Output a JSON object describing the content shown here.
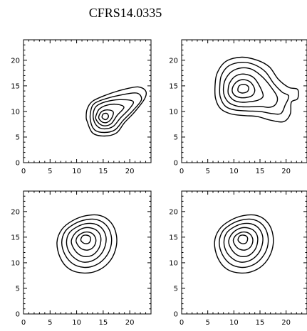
{
  "title": "CFRS14.0335",
  "chart_data": [
    {
      "type": "contour",
      "xlim": [
        0,
        24
      ],
      "ylim": [
        0,
        24
      ],
      "xticks": [
        0,
        5,
        10,
        15,
        20
      ],
      "yticks": [
        0,
        5,
        10,
        15,
        20
      ],
      "contours": [
        [
          [
            12.0,
            8.0
          ],
          [
            13.0,
            5.8
          ],
          [
            15.2,
            5.2
          ],
          [
            17.5,
            5.8
          ],
          [
            19.0,
            7.8
          ],
          [
            21.0,
            10.0
          ],
          [
            22.8,
            12.5
          ],
          [
            23.0,
            14.0
          ],
          [
            21.5,
            14.8
          ],
          [
            18.5,
            14.2
          ],
          [
            15.5,
            13.2
          ],
          [
            13.0,
            12.0
          ],
          [
            12.0,
            10.5
          ],
          [
            11.8,
            9.0
          ]
        ],
        [
          [
            12.6,
            8.2
          ],
          [
            13.4,
            6.4
          ],
          [
            15.2,
            5.9
          ],
          [
            17.2,
            6.4
          ],
          [
            18.8,
            8.3
          ],
          [
            20.7,
            10.3
          ],
          [
            22.2,
            12.3
          ],
          [
            21.3,
            13.6
          ],
          [
            18.2,
            13.2
          ],
          [
            15.5,
            12.5
          ],
          [
            13.4,
            11.6
          ],
          [
            12.7,
            10.3
          ]
        ],
        [
          [
            13.2,
            8.4
          ],
          [
            14.0,
            7.0
          ],
          [
            15.3,
            6.6
          ],
          [
            16.9,
            7.1
          ],
          [
            18.3,
            8.8
          ],
          [
            20.0,
            10.6
          ],
          [
            20.6,
            12.0
          ],
          [
            18.0,
            12.3
          ],
          [
            15.5,
            11.9
          ],
          [
            13.8,
            11.1
          ],
          [
            13.2,
            10.0
          ]
        ],
        [
          [
            13.6,
            8.6
          ],
          [
            14.4,
            7.5
          ],
          [
            15.5,
            7.2
          ],
          [
            16.6,
            7.7
          ],
          [
            17.6,
            9.2
          ],
          [
            18.9,
            10.8
          ],
          [
            17.5,
            11.4
          ],
          [
            15.6,
            11.2
          ],
          [
            14.3,
            10.5
          ],
          [
            13.8,
            9.6
          ]
        ],
        [
          [
            14.2,
            8.6
          ],
          [
            14.9,
            7.9
          ],
          [
            15.8,
            7.9
          ],
          [
            16.6,
            8.7
          ],
          [
            16.9,
            9.9
          ],
          [
            16.0,
            10.3
          ],
          [
            14.9,
            10.1
          ],
          [
            14.3,
            9.4
          ]
        ],
        [
          [
            14.8,
            8.8
          ],
          [
            15.5,
            8.4
          ],
          [
            16.0,
            9.0
          ],
          [
            15.7,
            9.6
          ],
          [
            15.0,
            9.5
          ]
        ]
      ]
    },
    {
      "type": "contour",
      "xlim": [
        0,
        24
      ],
      "ylim": [
        0,
        24
      ],
      "xticks": [
        0,
        5,
        10,
        15,
        20
      ],
      "yticks": [
        0,
        5,
        10,
        15,
        20
      ],
      "contours": [
        [
          [
            6.5,
            12.5
          ],
          [
            7.5,
            10.5
          ],
          [
            9.5,
            9.5
          ],
          [
            12.0,
            9.2
          ],
          [
            14.5,
            9.0
          ],
          [
            17.0,
            8.3
          ],
          [
            19.5,
            8.0
          ],
          [
            20.8,
            9.5
          ],
          [
            21.0,
            11.8
          ],
          [
            22.2,
            12.5
          ],
          [
            22.2,
            14.3
          ],
          [
            20.5,
            14.7
          ],
          [
            18.5,
            16.3
          ],
          [
            16.8,
            18.7
          ],
          [
            14.5,
            20.0
          ],
          [
            11.5,
            20.6
          ],
          [
            8.5,
            19.8
          ],
          [
            6.8,
            17.5
          ],
          [
            6.4,
            15.0
          ]
        ],
        [
          [
            7.4,
            12.8
          ],
          [
            8.4,
            11.0
          ],
          [
            10.2,
            10.3
          ],
          [
            12.5,
            10.1
          ],
          [
            15.0,
            10.0
          ],
          [
            17.2,
            9.6
          ],
          [
            19.0,
            9.6
          ],
          [
            19.8,
            11.2
          ],
          [
            20.5,
            13.0
          ],
          [
            19.2,
            13.8
          ],
          [
            17.6,
            15.5
          ],
          [
            16.0,
            17.8
          ],
          [
            13.8,
            19.2
          ],
          [
            11.5,
            19.6
          ],
          [
            9.0,
            18.9
          ],
          [
            7.6,
            17.0
          ],
          [
            7.3,
            14.8
          ]
        ],
        [
          [
            8.2,
            13.0
          ],
          [
            9.1,
            11.7
          ],
          [
            10.8,
            11.0
          ],
          [
            12.8,
            10.9
          ],
          [
            15.0,
            11.0
          ],
          [
            16.8,
            10.8
          ],
          [
            18.0,
            11.4
          ],
          [
            18.3,
            12.8
          ],
          [
            17.3,
            14.5
          ],
          [
            15.6,
            16.6
          ],
          [
            13.5,
            18.2
          ],
          [
            11.5,
            18.5
          ],
          [
            9.6,
            17.8
          ],
          [
            8.4,
            16.3
          ],
          [
            8.0,
            14.6
          ]
        ],
        [
          [
            9.0,
            13.3
          ],
          [
            10.0,
            12.2
          ],
          [
            11.5,
            11.8
          ],
          [
            13.0,
            11.9
          ],
          [
            14.6,
            12.2
          ],
          [
            15.6,
            13.0
          ],
          [
            15.0,
            14.8
          ],
          [
            13.8,
            16.6
          ],
          [
            12.0,
            17.3
          ],
          [
            10.3,
            16.9
          ],
          [
            9.2,
            15.6
          ],
          [
            8.9,
            14.3
          ]
        ],
        [
          [
            9.8,
            13.6
          ],
          [
            10.8,
            12.8
          ],
          [
            12.2,
            12.7
          ],
          [
            13.5,
            13.1
          ],
          [
            14.0,
            14.2
          ],
          [
            13.3,
            15.6
          ],
          [
            12.0,
            16.2
          ],
          [
            10.7,
            15.9
          ],
          [
            9.8,
            14.8
          ]
        ],
        [
          [
            10.8,
            14.0
          ],
          [
            11.6,
            13.6
          ],
          [
            12.6,
            13.9
          ],
          [
            12.8,
            14.8
          ],
          [
            12.0,
            15.3
          ],
          [
            11.0,
            15.0
          ]
        ]
      ]
    },
    {
      "type": "contour",
      "xlim": [
        0,
        24
      ],
      "ylim": [
        0,
        24
      ],
      "xticks": [
        0,
        5,
        10,
        15,
        20
      ],
      "yticks": [
        0,
        5,
        10,
        15,
        20
      ],
      "contours": [
        [
          [
            6.3,
            14.0
          ],
          [
            6.9,
            11.0
          ],
          [
            8.6,
            8.8
          ],
          [
            11.2,
            8.0
          ],
          [
            13.8,
            8.4
          ],
          [
            16.0,
            10.0
          ],
          [
            17.3,
            12.5
          ],
          [
            17.5,
            15.3
          ],
          [
            16.5,
            17.8
          ],
          [
            14.5,
            19.2
          ],
          [
            11.8,
            19.2
          ],
          [
            9.2,
            18.2
          ],
          [
            7.2,
            16.5
          ]
        ],
        [
          [
            7.2,
            14.0
          ],
          [
            7.8,
            11.6
          ],
          [
            9.3,
            9.8
          ],
          [
            11.4,
            9.1
          ],
          [
            13.5,
            9.5
          ],
          [
            15.3,
            10.9
          ],
          [
            16.4,
            13.0
          ],
          [
            16.5,
            15.3
          ],
          [
            15.6,
            17.3
          ],
          [
            13.9,
            18.4
          ],
          [
            11.7,
            18.4
          ],
          [
            9.6,
            17.6
          ],
          [
            7.9,
            16.2
          ]
        ],
        [
          [
            8.1,
            14.0
          ],
          [
            8.6,
            12.1
          ],
          [
            9.9,
            10.7
          ],
          [
            11.5,
            10.1
          ],
          [
            13.2,
            10.5
          ],
          [
            14.6,
            11.7
          ],
          [
            15.4,
            13.4
          ],
          [
            15.5,
            15.2
          ],
          [
            14.7,
            16.8
          ],
          [
            13.3,
            17.6
          ],
          [
            11.6,
            17.6
          ],
          [
            9.9,
            16.9
          ],
          [
            8.6,
            15.8
          ]
        ],
        [
          [
            9.0,
            14.1
          ],
          [
            9.5,
            12.7
          ],
          [
            10.5,
            11.6
          ],
          [
            11.7,
            11.2
          ],
          [
            13.0,
            11.5
          ],
          [
            14.0,
            12.5
          ],
          [
            14.5,
            13.8
          ],
          [
            14.5,
            15.2
          ],
          [
            13.8,
            16.3
          ],
          [
            12.7,
            16.8
          ],
          [
            11.4,
            16.8
          ],
          [
            10.2,
            16.2
          ],
          [
            9.4,
            15.3
          ]
        ],
        [
          [
            9.9,
            14.2
          ],
          [
            10.4,
            13.2
          ],
          [
            11.2,
            12.6
          ],
          [
            12.2,
            12.5
          ],
          [
            13.1,
            13.0
          ],
          [
            13.6,
            14.0
          ],
          [
            13.5,
            15.0
          ],
          [
            12.8,
            15.8
          ],
          [
            11.7,
            16.0
          ],
          [
            10.7,
            15.6
          ],
          [
            10.1,
            15.0
          ]
        ],
        [
          [
            10.8,
            14.4
          ],
          [
            11.4,
            13.8
          ],
          [
            12.2,
            13.8
          ],
          [
            12.6,
            14.4
          ],
          [
            12.5,
            15.1
          ],
          [
            11.8,
            15.4
          ],
          [
            11.1,
            15.2
          ]
        ]
      ]
    },
    {
      "type": "contour",
      "xlim": [
        0,
        24
      ],
      "ylim": [
        0,
        24
      ],
      "xticks": [
        0,
        5,
        10,
        15,
        20
      ],
      "yticks": [
        0,
        5,
        10,
        15,
        20
      ],
      "contours": [
        [
          [
            6.3,
            14.0
          ],
          [
            6.9,
            11.0
          ],
          [
            8.6,
            8.8
          ],
          [
            11.2,
            8.0
          ],
          [
            13.8,
            8.4
          ],
          [
            16.0,
            10.0
          ],
          [
            17.3,
            12.5
          ],
          [
            17.5,
            15.3
          ],
          [
            16.5,
            17.8
          ],
          [
            14.5,
            19.2
          ],
          [
            11.8,
            19.2
          ],
          [
            9.2,
            18.2
          ],
          [
            7.2,
            16.5
          ]
        ],
        [
          [
            7.2,
            14.0
          ],
          [
            7.8,
            11.6
          ],
          [
            9.3,
            9.8
          ],
          [
            11.4,
            9.1
          ],
          [
            13.5,
            9.5
          ],
          [
            15.3,
            10.9
          ],
          [
            16.4,
            13.0
          ],
          [
            16.5,
            15.3
          ],
          [
            15.6,
            17.3
          ],
          [
            13.9,
            18.4
          ],
          [
            11.7,
            18.4
          ],
          [
            9.6,
            17.6
          ],
          [
            7.9,
            16.2
          ]
        ],
        [
          [
            8.1,
            14.0
          ],
          [
            8.6,
            12.1
          ],
          [
            9.9,
            10.7
          ],
          [
            11.5,
            10.1
          ],
          [
            13.2,
            10.5
          ],
          [
            14.6,
            11.7
          ],
          [
            15.4,
            13.4
          ],
          [
            15.5,
            15.2
          ],
          [
            14.7,
            16.8
          ],
          [
            13.3,
            17.6
          ],
          [
            11.6,
            17.6
          ],
          [
            9.9,
            16.9
          ],
          [
            8.6,
            15.8
          ]
        ],
        [
          [
            9.0,
            14.1
          ],
          [
            9.5,
            12.7
          ],
          [
            10.5,
            11.6
          ],
          [
            11.7,
            11.2
          ],
          [
            13.0,
            11.5
          ],
          [
            14.0,
            12.5
          ],
          [
            14.5,
            13.8
          ],
          [
            14.5,
            15.2
          ],
          [
            13.8,
            16.3
          ],
          [
            12.7,
            16.8
          ],
          [
            11.4,
            16.8
          ],
          [
            10.2,
            16.2
          ],
          [
            9.4,
            15.3
          ]
        ],
        [
          [
            9.9,
            14.2
          ],
          [
            10.4,
            13.2
          ],
          [
            11.2,
            12.6
          ],
          [
            12.2,
            12.5
          ],
          [
            13.1,
            13.0
          ],
          [
            13.6,
            14.0
          ],
          [
            13.5,
            15.0
          ],
          [
            12.8,
            15.8
          ],
          [
            11.7,
            16.0
          ],
          [
            10.7,
            15.6
          ],
          [
            10.1,
            15.0
          ]
        ],
        [
          [
            10.8,
            14.4
          ],
          [
            11.4,
            13.8
          ],
          [
            12.2,
            13.8
          ],
          [
            12.6,
            14.4
          ],
          [
            12.5,
            15.1
          ],
          [
            11.8,
            15.4
          ],
          [
            11.1,
            15.2
          ]
        ]
      ]
    }
  ]
}
